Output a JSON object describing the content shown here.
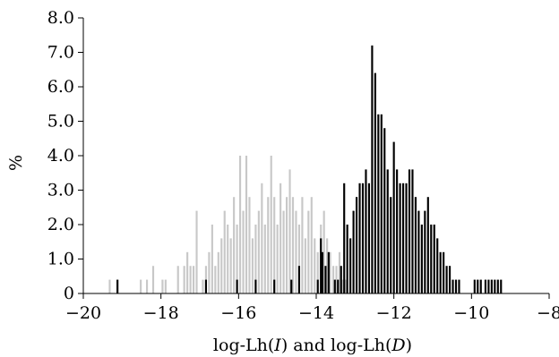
{
  "chart_data": {
    "type": "bar",
    "title": "",
    "xlabel_parts": [
      "log-Lh(",
      "I",
      ") and log-Lh(",
      "D",
      ")"
    ],
    "ylabel": "%",
    "xlim": [
      -20,
      -8
    ],
    "ylim": [
      0,
      8
    ],
    "x_ticks": [
      -20,
      -18,
      -16,
      -14,
      -12,
      -10,
      -8
    ],
    "x_tick_labels": [
      "−20",
      "−18",
      "−16",
      "−14",
      "−12",
      "−10",
      "−8"
    ],
    "y_ticks": [
      0,
      1,
      2,
      3,
      4,
      5,
      6,
      7,
      8
    ],
    "y_tick_labels": [
      "0",
      "1.0",
      "2.0",
      "3.0",
      "4.0",
      "5.0",
      "6.0",
      "7.0",
      "8.0"
    ],
    "grid": false,
    "legend": "none",
    "bin_width": 0.08,
    "series": [
      {
        "color": "#c8c8c8",
        "points": [
          [
            -19.32,
            0.4
          ],
          [
            -19.12,
            0.4
          ],
          [
            -18.52,
            0.4
          ],
          [
            -18.36,
            0.4
          ],
          [
            -18.2,
            0.8
          ],
          [
            -17.96,
            0.4
          ],
          [
            -17.88,
            0.4
          ],
          [
            -17.56,
            0.8
          ],
          [
            -17.4,
            0.8
          ],
          [
            -17.32,
            1.2
          ],
          [
            -17.24,
            0.8
          ],
          [
            -17.16,
            0.8
          ],
          [
            -17.08,
            2.4
          ],
          [
            -16.92,
            0.4
          ],
          [
            -16.84,
            0.8
          ],
          [
            -16.76,
            1.2
          ],
          [
            -16.68,
            2.0
          ],
          [
            -16.6,
            0.8
          ],
          [
            -16.52,
            1.2
          ],
          [
            -16.44,
            1.6
          ],
          [
            -16.36,
            2.4
          ],
          [
            -16.28,
            2.0
          ],
          [
            -16.2,
            1.6
          ],
          [
            -16.12,
            2.8
          ],
          [
            -16.04,
            2.0
          ],
          [
            -15.96,
            4.0
          ],
          [
            -15.88,
            2.4
          ],
          [
            -15.8,
            4.0
          ],
          [
            -15.72,
            2.8
          ],
          [
            -15.64,
            1.6
          ],
          [
            -15.56,
            2.0
          ],
          [
            -15.48,
            2.4
          ],
          [
            -15.4,
            3.2
          ],
          [
            -15.32,
            2.0
          ],
          [
            -15.24,
            2.8
          ],
          [
            -15.16,
            4.0
          ],
          [
            -15.08,
            2.8
          ],
          [
            -15.0,
            2.0
          ],
          [
            -14.92,
            3.2
          ],
          [
            -14.84,
            2.4
          ],
          [
            -14.76,
            2.8
          ],
          [
            -14.68,
            3.6
          ],
          [
            -14.6,
            2.8
          ],
          [
            -14.52,
            2.4
          ],
          [
            -14.44,
            2.0
          ],
          [
            -14.36,
            2.8
          ],
          [
            -14.28,
            1.6
          ],
          [
            -14.2,
            2.4
          ],
          [
            -14.12,
            2.8
          ],
          [
            -14.04,
            1.6
          ],
          [
            -13.96,
            1.2
          ],
          [
            -13.88,
            2.0
          ],
          [
            -13.8,
            2.4
          ],
          [
            -13.72,
            1.6
          ],
          [
            -13.64,
            1.2
          ],
          [
            -13.56,
            0.8
          ],
          [
            -13.48,
            0.8
          ],
          [
            -13.4,
            1.2
          ],
          [
            -13.32,
            0.4
          ],
          [
            -13.24,
            0.4
          ]
        ]
      },
      {
        "color": "#000000",
        "points": [
          [
            -19.12,
            0.4
          ],
          [
            -16.84,
            0.4
          ],
          [
            -16.04,
            0.4
          ],
          [
            -15.56,
            0.4
          ],
          [
            -15.08,
            0.4
          ],
          [
            -14.64,
            0.4
          ],
          [
            -14.44,
            0.8
          ],
          [
            -13.96,
            0.4
          ],
          [
            -13.88,
            1.6
          ],
          [
            -13.84,
            1.2
          ],
          [
            -13.76,
            0.8
          ],
          [
            -13.68,
            1.2
          ],
          [
            -13.52,
            0.4
          ],
          [
            -13.44,
            0.4
          ],
          [
            -13.36,
            0.8
          ],
          [
            -13.28,
            3.2
          ],
          [
            -13.2,
            2.0
          ],
          [
            -13.12,
            1.6
          ],
          [
            -13.04,
            2.4
          ],
          [
            -12.96,
            2.8
          ],
          [
            -12.88,
            3.2
          ],
          [
            -12.8,
            3.2
          ],
          [
            -12.72,
            3.6
          ],
          [
            -12.64,
            3.2
          ],
          [
            -12.56,
            7.2
          ],
          [
            -12.48,
            6.4
          ],
          [
            -12.4,
            5.2
          ],
          [
            -12.32,
            5.2
          ],
          [
            -12.24,
            4.8
          ],
          [
            -12.16,
            3.6
          ],
          [
            -12.08,
            2.8
          ],
          [
            -12.0,
            4.4
          ],
          [
            -11.92,
            3.6
          ],
          [
            -11.84,
            3.2
          ],
          [
            -11.76,
            3.2
          ],
          [
            -11.68,
            3.2
          ],
          [
            -11.6,
            3.6
          ],
          [
            -11.52,
            3.6
          ],
          [
            -11.44,
            2.8
          ],
          [
            -11.36,
            2.4
          ],
          [
            -11.28,
            2.0
          ],
          [
            -11.2,
            2.4
          ],
          [
            -11.12,
            2.8
          ],
          [
            -11.04,
            2.0
          ],
          [
            -10.96,
            2.0
          ],
          [
            -10.88,
            1.6
          ],
          [
            -10.8,
            1.2
          ],
          [
            -10.72,
            1.2
          ],
          [
            -10.64,
            0.8
          ],
          [
            -10.56,
            0.8
          ],
          [
            -10.48,
            0.4
          ],
          [
            -10.4,
            0.4
          ],
          [
            -10.32,
            0.4
          ],
          [
            -9.92,
            0.4
          ],
          [
            -9.84,
            0.4
          ],
          [
            -9.76,
            0.4
          ],
          [
            -9.64,
            0.4
          ],
          [
            -9.56,
            0.4
          ],
          [
            -9.48,
            0.4
          ],
          [
            -9.4,
            0.4
          ],
          [
            -9.32,
            0.4
          ],
          [
            -9.24,
            0.4
          ]
        ]
      }
    ]
  }
}
